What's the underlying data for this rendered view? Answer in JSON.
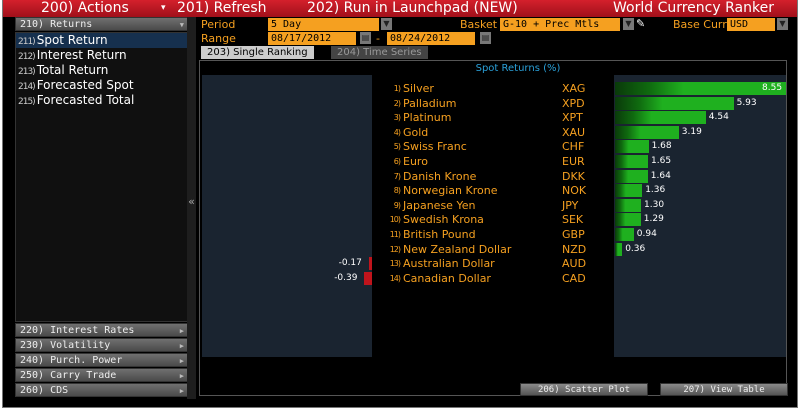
{
  "topbar": {
    "actions": "200) Actions",
    "actions_arrow": "▾",
    "refresh": "201) Refresh",
    "launchpad": "202) Run in Launchpad (NEW)",
    "title": "World Currency Ranker"
  },
  "left": {
    "returns": "210) Returns",
    "items": [
      {
        "num": "211)",
        "label": "Spot Return",
        "selected": true
      },
      {
        "num": "212)",
        "label": "Interest Return"
      },
      {
        "num": "213)",
        "label": "Total Return"
      },
      {
        "num": "214)",
        "label": "Forecasted Spot"
      },
      {
        "num": "215)",
        "label": "Forecasted Total"
      }
    ],
    "menus": [
      "220) Interest Rates",
      "230) Volatility",
      "240) Purch. Power",
      "250) Carry Trade",
      "260) CDS"
    ],
    "collapse": "«"
  },
  "controls": {
    "period_label": "Period",
    "period": "5 Day",
    "range_label": "Range",
    "range_from": "08/17/2012",
    "range_sep": "-",
    "range_to": "08/24/2012",
    "basket_label": "Basket",
    "basket": "G-10 + Prec Mtls",
    "base_label": "Base Curr",
    "base": "USD"
  },
  "tabs": [
    {
      "label": "203) Single Ranking",
      "active": true
    },
    {
      "label": "204) Time Series"
    }
  ],
  "buttons": {
    "scatter": "206) Scatter Plot",
    "table": "207) View Table"
  },
  "colors": {
    "accent": "#f5a020",
    "positive": "#1fb01f",
    "negative": "#c0141c",
    "header": "#c0141c"
  },
  "chart_data": {
    "type": "bar",
    "orientation": "horizontal",
    "title": "Spot Returns  (%)",
    "rows": [
      {
        "rank": "1)",
        "name": "Silver",
        "code": "XAG",
        "value": 8.55
      },
      {
        "rank": "2)",
        "name": "Palladium",
        "code": "XPD",
        "value": 5.93
      },
      {
        "rank": "3)",
        "name": "Platinum",
        "code": "XPT",
        "value": 4.54
      },
      {
        "rank": "4)",
        "name": "Gold",
        "code": "XAU",
        "value": 3.19
      },
      {
        "rank": "5)",
        "name": "Swiss Franc",
        "code": "CHF",
        "value": 1.68
      },
      {
        "rank": "6)",
        "name": "Euro",
        "code": "EUR",
        "value": 1.65
      },
      {
        "rank": "7)",
        "name": "Danish Krone",
        "code": "DKK",
        "value": 1.64
      },
      {
        "rank": "8)",
        "name": "Norwegian Krone",
        "code": "NOK",
        "value": 1.36
      },
      {
        "rank": "9)",
        "name": "Japanese Yen",
        "code": "JPY",
        "value": 1.3
      },
      {
        "rank": "10)",
        "name": "Swedish Krona",
        "code": "SEK",
        "value": 1.29
      },
      {
        "rank": "11)",
        "name": "British Pound",
        "code": "GBP",
        "value": 0.94
      },
      {
        "rank": "12)",
        "name": "New Zealand Dollar",
        "code": "NZD",
        "value": 0.36
      },
      {
        "rank": "13)",
        "name": "Australian Dollar",
        "code": "AUD",
        "value": -0.17
      },
      {
        "rank": "14)",
        "name": "Canadian Dollar",
        "code": "CAD",
        "value": -0.39
      }
    ]
  }
}
